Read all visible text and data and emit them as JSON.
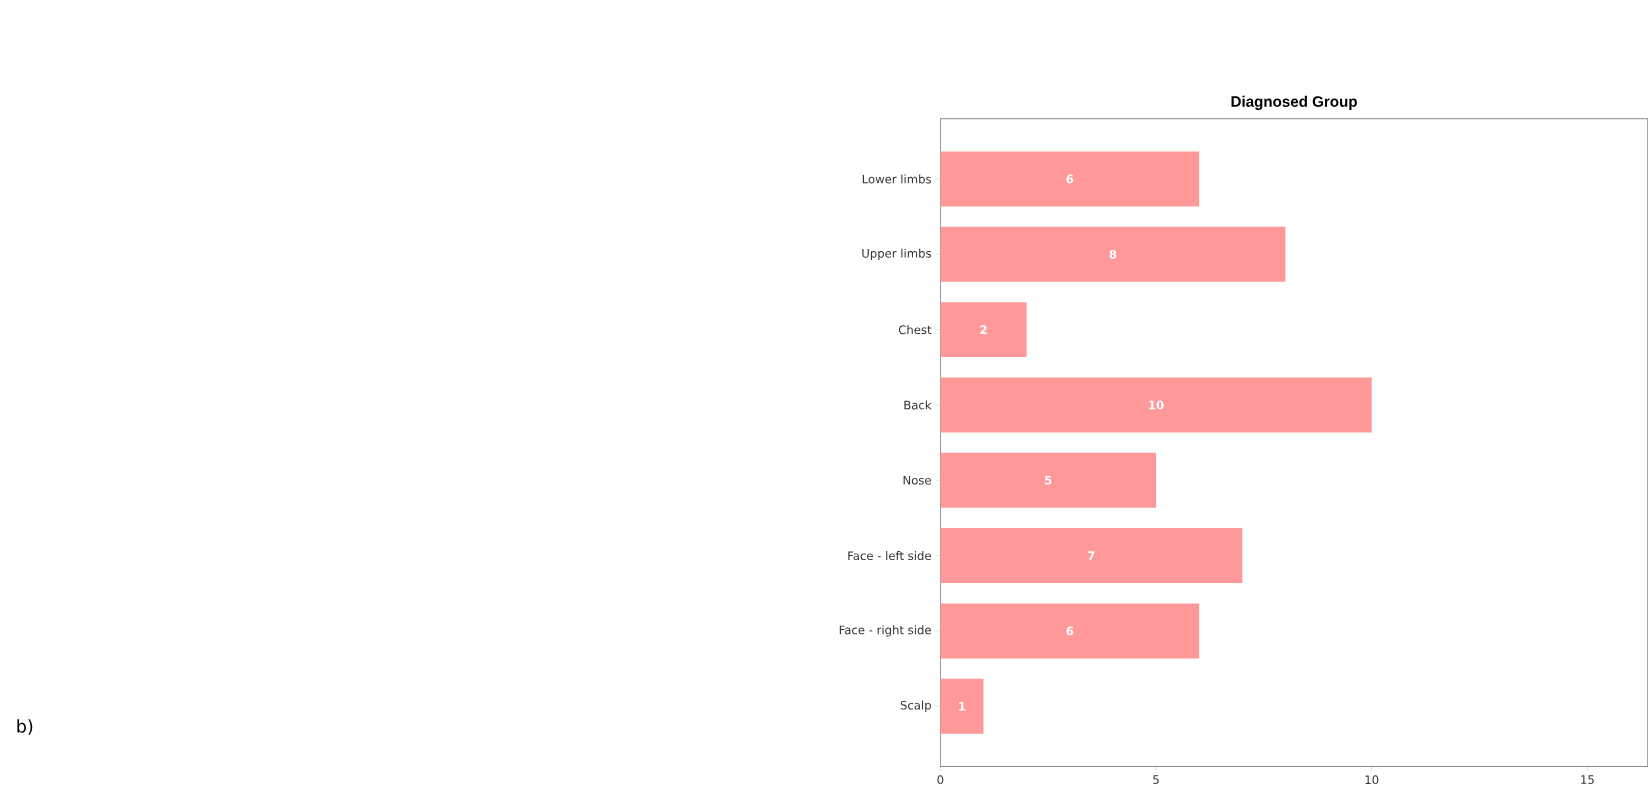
{
  "chart_data": {
    "type": "bar",
    "orientation": "horizontal",
    "title": "Diagnosed Group",
    "categories": [
      "Lower limbs",
      "Upper limbs",
      "Chest",
      "Back",
      "Nose",
      "Face - left side",
      "Face - right side",
      "Scalp"
    ],
    "values": [
      6,
      8,
      2,
      10,
      5,
      7,
      6,
      1
    ],
    "color": "#ff9999",
    "xlim": [
      0,
      16.4
    ],
    "xticks": [
      0,
      5,
      10,
      15
    ],
    "data_labels": true,
    "grid": false,
    "annotations": [
      "b)"
    ]
  }
}
